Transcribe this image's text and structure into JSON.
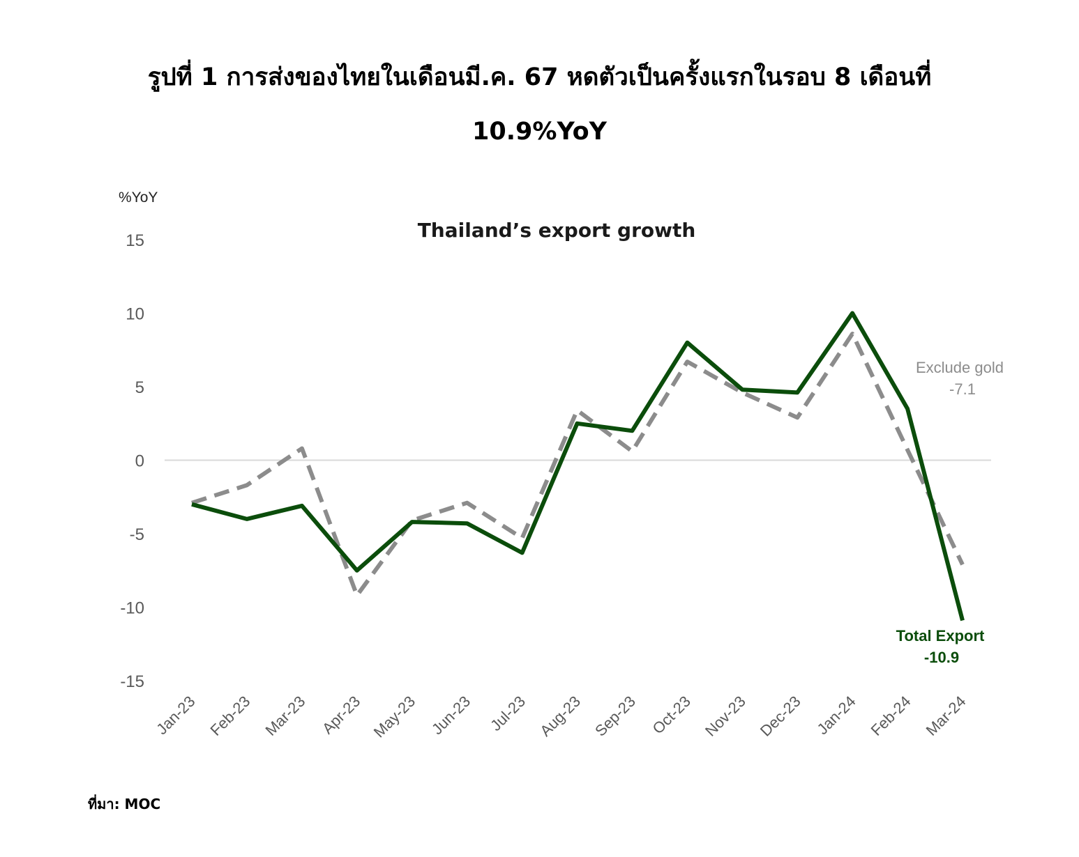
{
  "page": {
    "title_line1": "รูปที่ 1 การส่งของไทยในเดือนมี.ค. 67 หดตัวเป็นครั้งแรกในรอบ 8 เดือนที่",
    "title_line2": "10.9%YoY",
    "unit_label": "%YoY",
    "source": "ที่มา: MOC"
  },
  "chart_data": {
    "type": "line",
    "title": "Thailand’s export growth",
    "ylabel": "%YoY",
    "xlabel": "",
    "ylim": [
      -15,
      15
    ],
    "yticks": [
      15,
      10,
      5,
      0,
      -5,
      -10,
      -15
    ],
    "categories": [
      "Jan-23",
      "Feb-23",
      "Mar-23",
      "Apr-23",
      "May-23",
      "Jun-23",
      "Jul-23",
      "Aug-23",
      "Sep-23",
      "Oct-23",
      "Nov-23",
      "Dec-23",
      "Jan-24",
      "Feb-24",
      "Mar-24"
    ],
    "series": [
      {
        "key": "total",
        "color": "#0b4d0b",
        "style": "solid",
        "values": [
          -3.0,
          -4.0,
          -3.1,
          -7.5,
          -4.2,
          -4.3,
          -6.3,
          2.5,
          2.0,
          8.0,
          4.8,
          4.6,
          10.0,
          3.5,
          -10.9
        ]
      },
      {
        "key": "ex_gold",
        "color": "#8c8c8c",
        "style": "dashed",
        "values": [
          -2.9,
          -1.7,
          0.8,
          -9.2,
          -4.1,
          -2.9,
          -5.3,
          3.4,
          0.6,
          6.7,
          4.6,
          2.9,
          8.6,
          0.7,
          -7.1
        ]
      }
    ],
    "annotations": {
      "ex_gold_label": "Exclude gold",
      "ex_gold_value": "-7.1",
      "total_label": "Total Export",
      "total_value": "-10.9"
    },
    "zero_line": true,
    "grid": false
  }
}
